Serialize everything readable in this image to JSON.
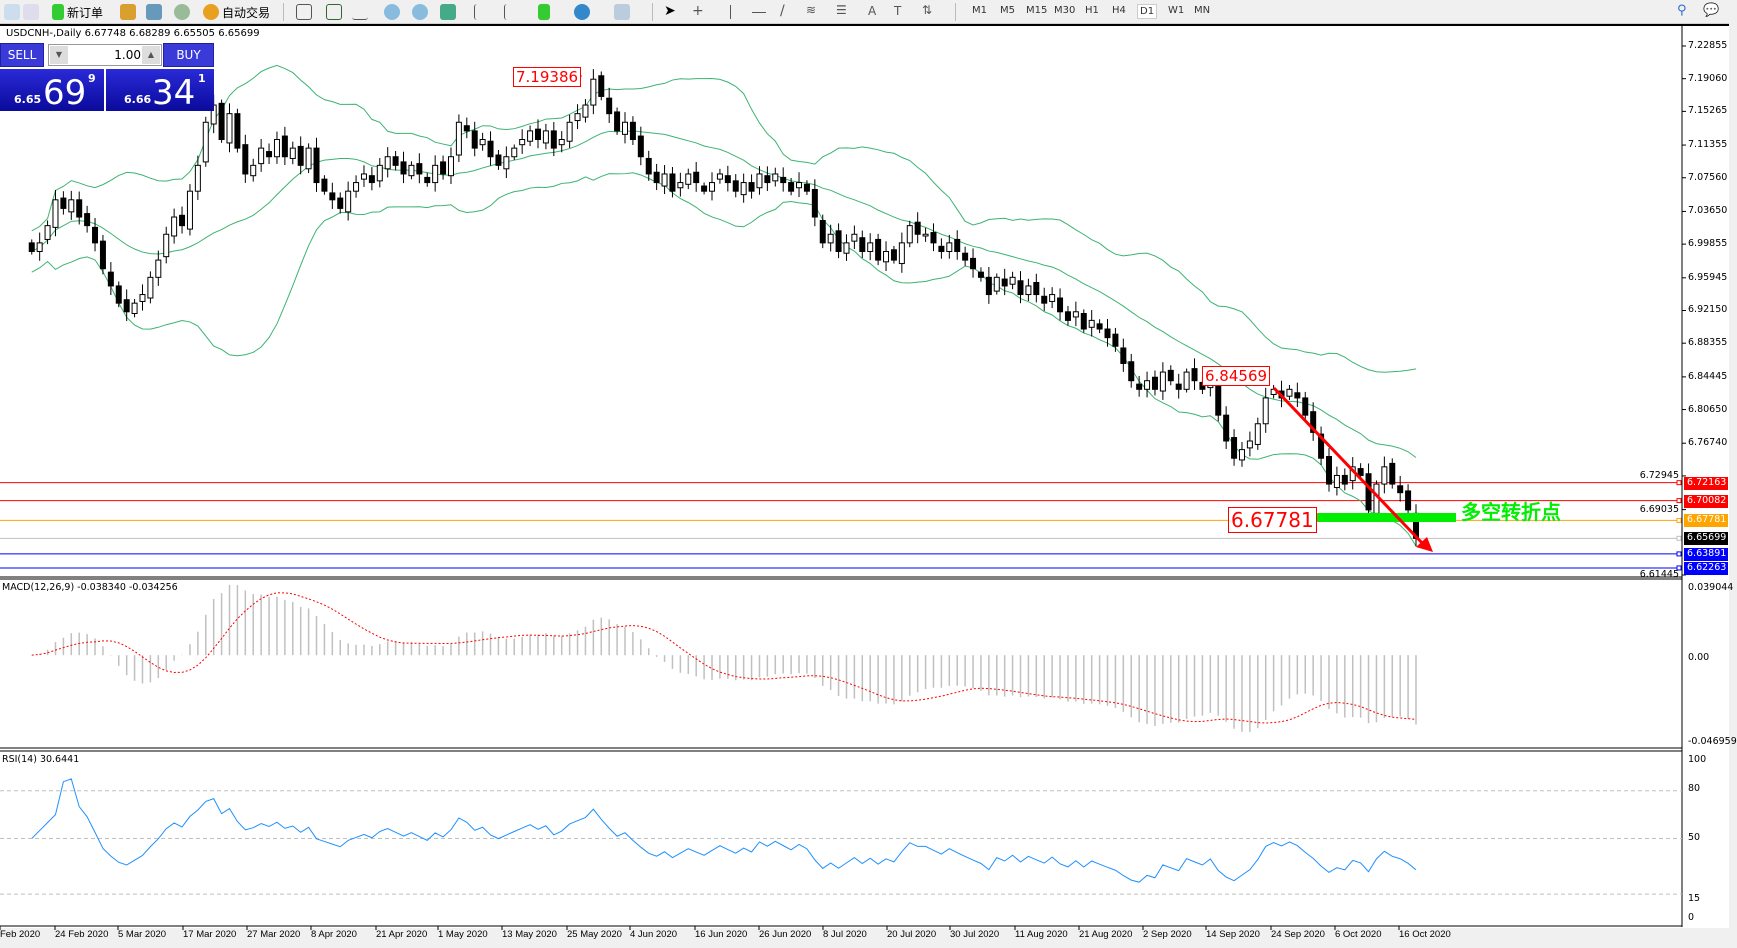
{
  "toolbar": {
    "new_order": "新订单",
    "auto_trading": "自动交易",
    "timeframes": [
      "M1",
      "M5",
      "M15",
      "M30",
      "H1",
      "H4",
      "D1",
      "W1",
      "MN"
    ],
    "active_timeframe": "D1"
  },
  "chart": {
    "title": "USDCNH-,Daily  6.67748 6.68289 6.65505 6.65699"
  },
  "trade_panel": {
    "sell_label": "SELL",
    "buy_label": "BUY",
    "lot": "1.00",
    "sell_small": "6.65",
    "sell_large": "69",
    "sell_sup": "9",
    "buy_small": "6.66",
    "buy_large": "34",
    "buy_sup": "1"
  },
  "annotations": {
    "high_label": "7.19386",
    "mid_label": "6.84569",
    "pivot_label": "6.67781",
    "pivot_text": "多空转折点",
    "pivot_color": "#00ee00",
    "arrow_color": "#ff0000"
  },
  "price_ticks": [
    "7.22855",
    "7.19060",
    "7.15265",
    "7.11355",
    "7.07560",
    "7.03650",
    "6.99855",
    "6.95945",
    "6.92150",
    "6.88355",
    "6.84445",
    "6.80650",
    "6.76740",
    "6.72945",
    "6.69035",
    "6.61445"
  ],
  "hlines": [
    {
      "value": "6.72163",
      "color": "#ff0000"
    },
    {
      "value": "6.70082",
      "color": "#ff0000"
    },
    {
      "value": "6.67781",
      "color": "#ffa500"
    },
    {
      "value": "6.65699",
      "color": "#000000",
      "line": "#c0c0c0"
    },
    {
      "value": "6.63891",
      "color": "#0000ff"
    },
    {
      "value": "6.62263",
      "color": "#0000ff"
    }
  ],
  "macd": {
    "label": "MACD(12,26,9) -0.038340 -0.034256",
    "ticks": [
      "0.039044",
      "0.00",
      "-0.046959"
    ]
  },
  "rsi": {
    "label": "RSI(14) 30.6441",
    "ticks": [
      "100",
      "80",
      "50",
      "15",
      "0"
    ]
  },
  "date_ticks": [
    "Feb 2020",
    "24 Feb 2020",
    "5 Mar 2020",
    "17 Mar 2020",
    "27 Mar 2020",
    "8 Apr 2020",
    "21 Apr 2020",
    "1 May 2020",
    "13 May 2020",
    "25 May 2020",
    "4 Jun 2020",
    "16 Jun 2020",
    "26 Jun 2020",
    "8 Jul 2020",
    "20 Jul 2020",
    "30 Jul 2020",
    "11 Aug 2020",
    "21 Aug 2020",
    "2 Sep 2020",
    "14 Sep 2020",
    "24 Sep 2020",
    "6 Oct 2020",
    "16 Oct 2020"
  ],
  "chart_data": {
    "type": "candlestick",
    "symbol": "USDCNH-",
    "timeframe": "Daily",
    "ylim": [
      6.61445,
      7.22855
    ],
    "closes": [
      6.99,
      7.0,
      7.02,
      7.05,
      7.04,
      7.05,
      7.03,
      7.02,
      7.0,
      6.97,
      6.95,
      6.93,
      6.92,
      6.93,
      6.94,
      6.96,
      6.98,
      7.01,
      7.03,
      7.02,
      7.06,
      7.09,
      7.14,
      7.16,
      7.12,
      7.15,
      7.11,
      7.08,
      7.09,
      7.11,
      7.1,
      7.12,
      7.1,
      7.11,
      7.09,
      7.11,
      7.07,
      7.06,
      7.05,
      7.04,
      7.06,
      7.07,
      7.08,
      7.07,
      7.09,
      7.1,
      7.09,
      7.08,
      7.09,
      7.08,
      7.07,
      7.09,
      7.08,
      7.1,
      7.14,
      7.13,
      7.11,
      7.12,
      7.1,
      7.09,
      7.1,
      7.11,
      7.12,
      7.13,
      7.12,
      7.13,
      7.11,
      7.12,
      7.14,
      7.15,
      7.16,
      7.19,
      7.17,
      7.15,
      7.13,
      7.14,
      7.12,
      7.1,
      7.08,
      7.07,
      7.08,
      7.06,
      7.07,
      7.08,
      7.07,
      7.06,
      7.07,
      7.08,
      7.07,
      7.06,
      7.07,
      7.06,
      7.08,
      7.07,
      7.08,
      7.07,
      7.06,
      7.07,
      7.06,
      7.03,
      7.0,
      7.01,
      6.99,
      7.0,
      7.01,
      6.99,
      7.0,
      6.98,
      6.99,
      6.98,
      7.0,
      7.02,
      7.01,
      7.01,
      7.0,
      6.99,
      7.0,
      6.99,
      6.98,
      6.97,
      6.96,
      6.94,
      6.96,
      6.95,
      6.96,
      6.94,
      6.95,
      6.94,
      6.93,
      6.94,
      6.92,
      6.91,
      6.92,
      6.9,
      6.91,
      6.9,
      6.89,
      6.88,
      6.86,
      6.84,
      6.83,
      6.84,
      6.83,
      6.85,
      6.84,
      6.83,
      6.85,
      6.84,
      6.83,
      6.84,
      6.8,
      6.77,
      6.75,
      6.76,
      6.77,
      6.79,
      6.82,
      6.83,
      6.82,
      6.83,
      6.82,
      6.8,
      6.78,
      6.75,
      6.72,
      6.73,
      6.72,
      6.74,
      6.73,
      6.69,
      6.72,
      6.74,
      6.72,
      6.71,
      6.69,
      6.65699
    ],
    "indicators": [
      "Bollinger Bands(20,2)",
      "MACD(12,26,9)",
      "RSI(14)"
    ],
    "band_color": "#3cb371",
    "macd_hist_color": "#c0c0c0",
    "macd_signal_color": "#ff0000",
    "rsi_color": "#1e90ff"
  }
}
